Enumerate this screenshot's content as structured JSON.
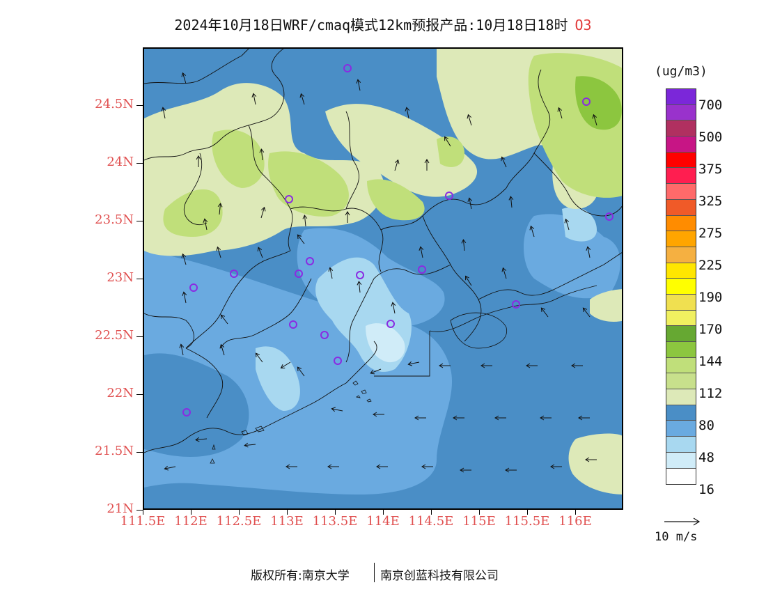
{
  "title": {
    "text": "2024年10月18日WRF/cmaq模式12km预报产品:10月18日18时",
    "pollutant": "O3"
  },
  "axes": {
    "y_ticks": [
      "21N",
      "21.5N",
      "22N",
      "22.5N",
      "23N",
      "23.5N",
      "24N",
      "24.5N"
    ],
    "x_ticks": [
      "111.5E",
      "112E",
      "112.5E",
      "113E",
      "113.5E",
      "114E",
      "114.5E",
      "115E",
      "115.5E",
      "116E"
    ],
    "lon_range": [
      111.5,
      116.5
    ],
    "lat_range": [
      21.0,
      25.0
    ]
  },
  "legend": {
    "unit": "(ug/m3)",
    "labels": [
      "700",
      "500",
      "375",
      "325",
      "275",
      "225",
      "190",
      "170",
      "144",
      "112",
      "80",
      "48",
      "16"
    ],
    "colors": [
      "#7b27d9",
      "#9932cc",
      "#b03060",
      "#c71585",
      "#ff0000",
      "#ff1e50",
      "#ff6a6a",
      "#f05a28",
      "#ff8c00",
      "#ffa500",
      "#f5b041",
      "#ffe600",
      "#ffff00",
      "#f0e050",
      "#f0f060",
      "#66a832",
      "#8cc63f",
      "#c0df7a",
      "#c8e08c",
      "#dde9b8",
      "#4a8ec6",
      "#6aaae0",
      "#a8d8f0",
      "#d0ecf8",
      "#ffffff"
    ]
  },
  "wind_key": {
    "label": "10 m/s"
  },
  "footer": {
    "left": "版权所有:南京大学",
    "right": "南京创蓝科技有限公司"
  },
  "colors": {
    "ocean_base": "#4a8ec6",
    "mid_blue": "#6aaae0",
    "light_blue": "#a8d8f0",
    "pale_blue": "#d0ecf8",
    "pale_green": "#dde9b8",
    "light_green": "#c0df7a",
    "green": "#8cc63f",
    "station_marker": "#8a2be2"
  },
  "map_layers": {
    "field_contours": "O3 concentration",
    "vectors": "wind arrows",
    "boundaries": "administrative borders",
    "stations": "monitoring stations"
  }
}
